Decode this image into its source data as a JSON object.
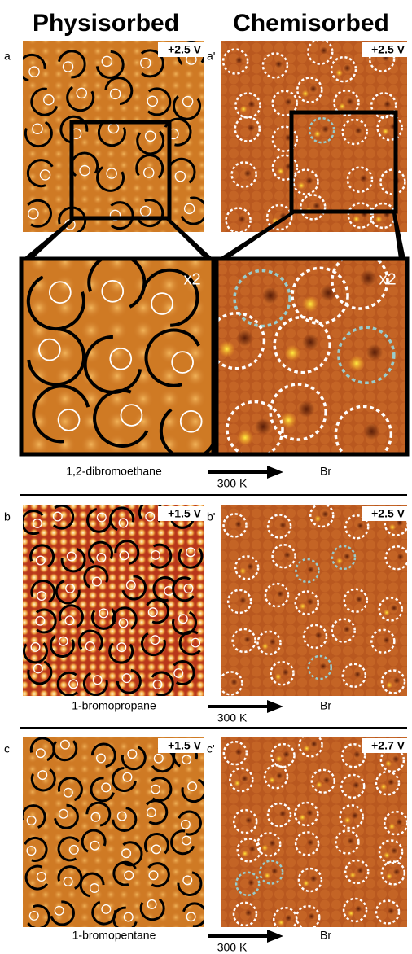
{
  "header": {
    "left": "Physisorbed",
    "right": "Chemisorbed"
  },
  "rows": [
    {
      "left": {
        "label": "a",
        "bias": "+2.5 V"
      },
      "right": {
        "label": "a'",
        "bias": "+2.5 V"
      },
      "zoom": {
        "left": "x2",
        "right": "x2"
      },
      "caption": {
        "reactant": "1,2-dibromoethane",
        "temperature": "300 K",
        "product": "Br"
      }
    },
    {
      "left": {
        "label": "b",
        "bias": "+1.5 V"
      },
      "right": {
        "label": "b'",
        "bias": "+2.5 V"
      },
      "caption": {
        "reactant": "1-bromopropane",
        "temperature": "300 K",
        "product": "Br"
      }
    },
    {
      "left": {
        "label": "c",
        "bias": "+1.5 V"
      },
      "right": {
        "label": "c'",
        "bias": "+2.7 V"
      },
      "caption": {
        "reactant": "1-bromopentane",
        "temperature": "300 K",
        "product": "Br"
      }
    }
  ]
}
